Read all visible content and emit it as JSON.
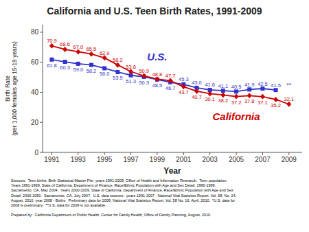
{
  "chart_data": {
    "type": "line",
    "title": "California and U.S. Teen Birth Rates, 1991-2009",
    "xlabel": "Year",
    "ylabel": "Birth Rate\n(per 1,000 females age 15-19 years)",
    "x": [
      1991,
      1992,
      1993,
      1994,
      1995,
      1996,
      1997,
      1998,
      1999,
      2000,
      2001,
      2002,
      2003,
      2004,
      2005,
      2006,
      2007,
      2008,
      2009
    ],
    "series": [
      {
        "name": "U.S.",
        "color": "#3333cc",
        "marker": "square",
        "values": [
          61.8,
          60.3,
          59.0,
          58.2,
          56.0,
          53.5,
          51.3,
          50.3,
          48.5,
          46.7,
          45.3,
          43.0,
          41.6,
          41.1,
          40.5,
          41.9,
          42.5,
          41.5,
          null
        ],
        "value_labels": [
          "61.8",
          "60.3",
          "59.0",
          "58.2",
          "56.0",
          "53.5",
          "51.3",
          "50.3",
          "48.5",
          "46.7",
          "45.3",
          "43.0",
          "41.6",
          "41.1",
          "40.5",
          "41.9",
          "42.5",
          "41.5",
          null
        ]
      },
      {
        "name": "California",
        "color": "#cc0000",
        "marker": "diamond",
        "values": [
          70.9,
          68.6,
          67.0,
          65.5,
          62.9,
          58.2,
          53.8,
          50.9,
          48.8,
          47.7,
          43.7,
          40.7,
          39.1,
          38.2,
          37.2,
          37.8,
          37.1,
          35.2,
          32.1
        ],
        "value_labels": [
          "70.9",
          "68.6",
          "67.0",
          "65.5",
          "62.9",
          "58.2",
          "53.8",
          "50.9",
          "48.8",
          "47.7",
          "43.7",
          "40.7",
          "39.1",
          "38.2",
          "37.2",
          "37.8",
          "37.1",
          "35.2",
          "32.1"
        ]
      }
    ],
    "annotations": [
      {
        "text": "**",
        "x": 2009,
        "y": 41.5,
        "color": "#3333cc"
      }
    ],
    "xlim": [
      1990.3,
      2010.0
    ],
    "xticks": [
      1991,
      1993,
      1995,
      1997,
      1999,
      2001,
      2003,
      2005,
      2007,
      2009
    ],
    "ylim": [
      0,
      85
    ],
    "yticks": [
      0,
      20,
      40,
      60,
      80
    ],
    "data_labels": true,
    "grid": false,
    "source": "Sources:  Teen births: Birth Statistical Master File, years 1991-2009, Office of Health and Information Research.  Teen population:\nYears 1991-1999, State of California, Department of Finance, Race/Ethnic Population with Age and Sex Detail, 1990-1999.\nSacramento, CA, May 2004.  Years 2000-2009, State of California, Department of Finance, Race/Ethnic Population with Age and Sex\nDetail, 2000-2050.  Sacramento, CA, July 2007.  U.S. data sources:  years 1991-2007 : National Vital Statistics Report, Vol. 58, No. 24,\nAugust, 2010; year 2008 - Births:  Preliminary data for 2008, National Vital Statistics Report, Vol. 58 No. 16, April, 2010.  *U.S. data for\n2008 is preliminary.  **U.S. data for 2009 is not available.\n\nPrepared by:  California Department of Public Health, Center for Family Health, Office of Family Planning, August, 2010."
  }
}
